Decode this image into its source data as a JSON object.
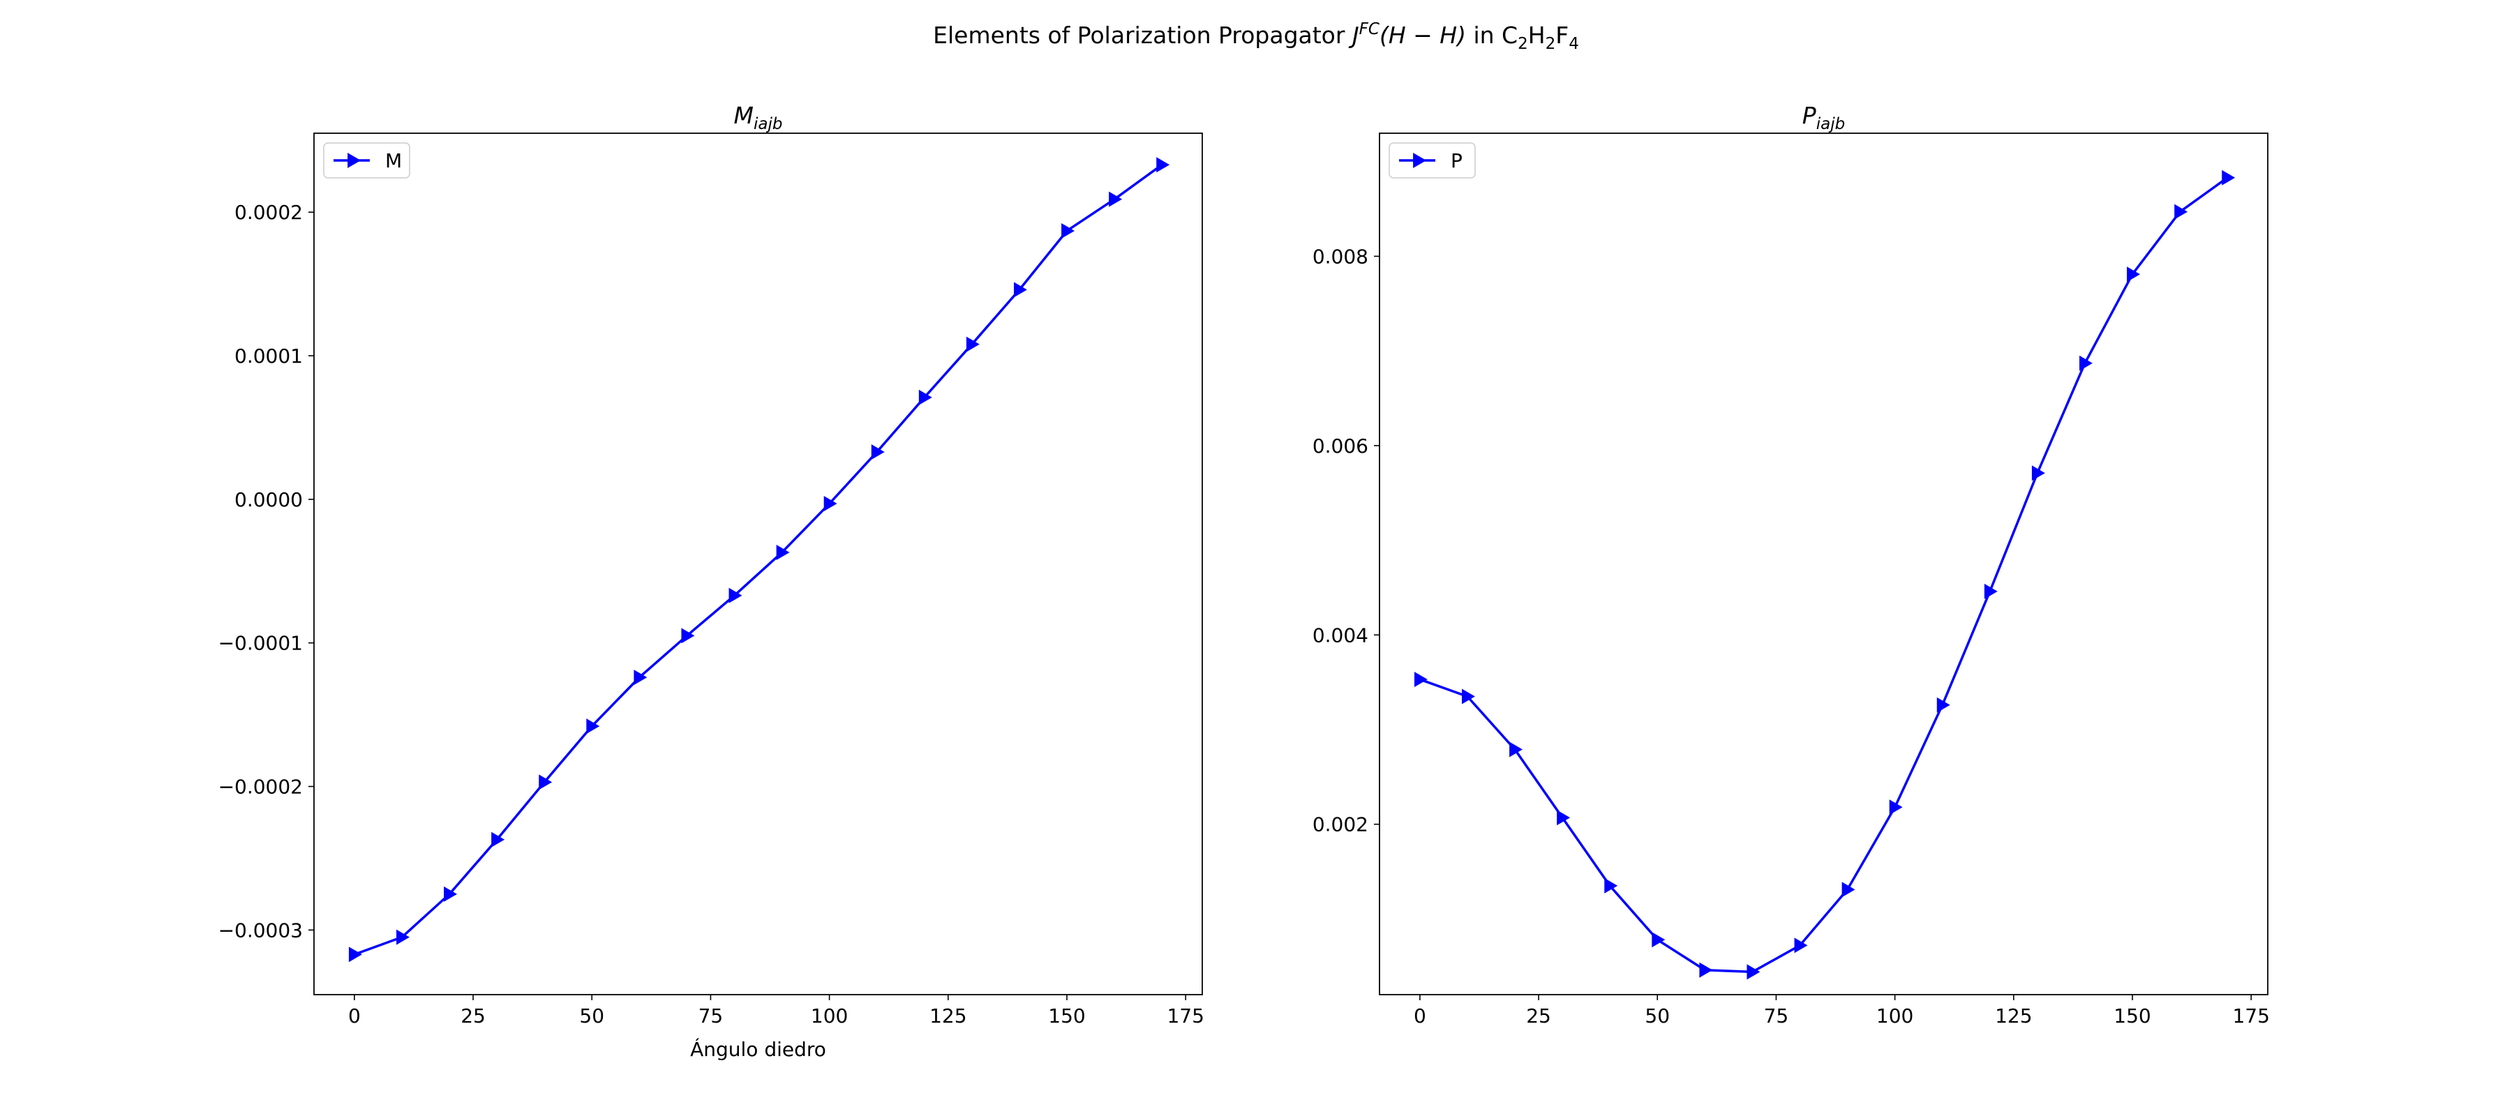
{
  "figure": {
    "suptitle": {
      "prefix": "Elements of Polarization Propagator ",
      "j": "J",
      "fc": "FC",
      "hh": "(H − H)",
      "in": " in C",
      "sub1": "2",
      "h": "H",
      "sub2": "2",
      "f": "F",
      "sub3": "4"
    }
  },
  "chart_data": [
    {
      "type": "line",
      "title": "M",
      "title_sub": "iajb",
      "xlabel": "Ángulo diedro",
      "ylabel": "",
      "legend": "top-left",
      "grid": false,
      "marker": "triangle-right",
      "color": "#0000ff",
      "xlim": [
        -8.5,
        178.5
      ],
      "ylim": [
        -0.000345,
        0.000255
      ],
      "xticks": [
        0,
        25,
        50,
        75,
        100,
        125,
        150,
        175
      ],
      "yticks": [
        -0.0003,
        -0.0002,
        -0.0001,
        0.0,
        0.0001,
        0.0002
      ],
      "ytick_labels": [
        "−0.0003",
        "−0.0002",
        "−0.0001",
        "0.0000",
        "0.0001",
        "0.0002"
      ],
      "series": [
        {
          "name": "M",
          "x": [
            0,
            10,
            20,
            30,
            40,
            50,
            60,
            70,
            80,
            90,
            100,
            110,
            120,
            130,
            140,
            150,
            160,
            170
          ],
          "y": [
            -0.000317,
            -0.000305,
            -0.000275,
            -0.000237,
            -0.000197,
            -0.000158,
            -0.000124,
            -9.5e-05,
            -6.7e-05,
            -3.7e-05,
            -3e-06,
            3.3e-05,
            7.1e-05,
            0.000108,
            0.000146,
            0.000187,
            0.000209,
            0.000233
          ]
        }
      ]
    },
    {
      "type": "line",
      "title": "P",
      "title_sub": "iajb",
      "xlabel": "",
      "ylabel": "",
      "legend": "top-left",
      "grid": false,
      "marker": "triangle-right",
      "color": "#0000ff",
      "xlim": [
        -8.5,
        178.5
      ],
      "ylim": [
        0.0002,
        0.0093
      ],
      "xticks": [
        0,
        25,
        50,
        75,
        100,
        125,
        150,
        175
      ],
      "yticks": [
        0.002,
        0.004,
        0.006,
        0.008
      ],
      "ytick_labels": [
        "0.002",
        "0.004",
        "0.006",
        "0.008"
      ],
      "series": [
        {
          "name": "P",
          "x": [
            0,
            10,
            20,
            30,
            40,
            50,
            60,
            70,
            80,
            90,
            100,
            110,
            120,
            130,
            140,
            150,
            160,
            170
          ],
          "y": [
            0.00353,
            0.00335,
            0.00279,
            0.00207,
            0.00135,
            0.00078,
            0.00046,
            0.00044,
            0.00072,
            0.00131,
            0.00218,
            0.00326,
            0.00446,
            0.00571,
            0.00687,
            0.00781,
            0.00847,
            0.00883
          ]
        }
      ]
    }
  ]
}
